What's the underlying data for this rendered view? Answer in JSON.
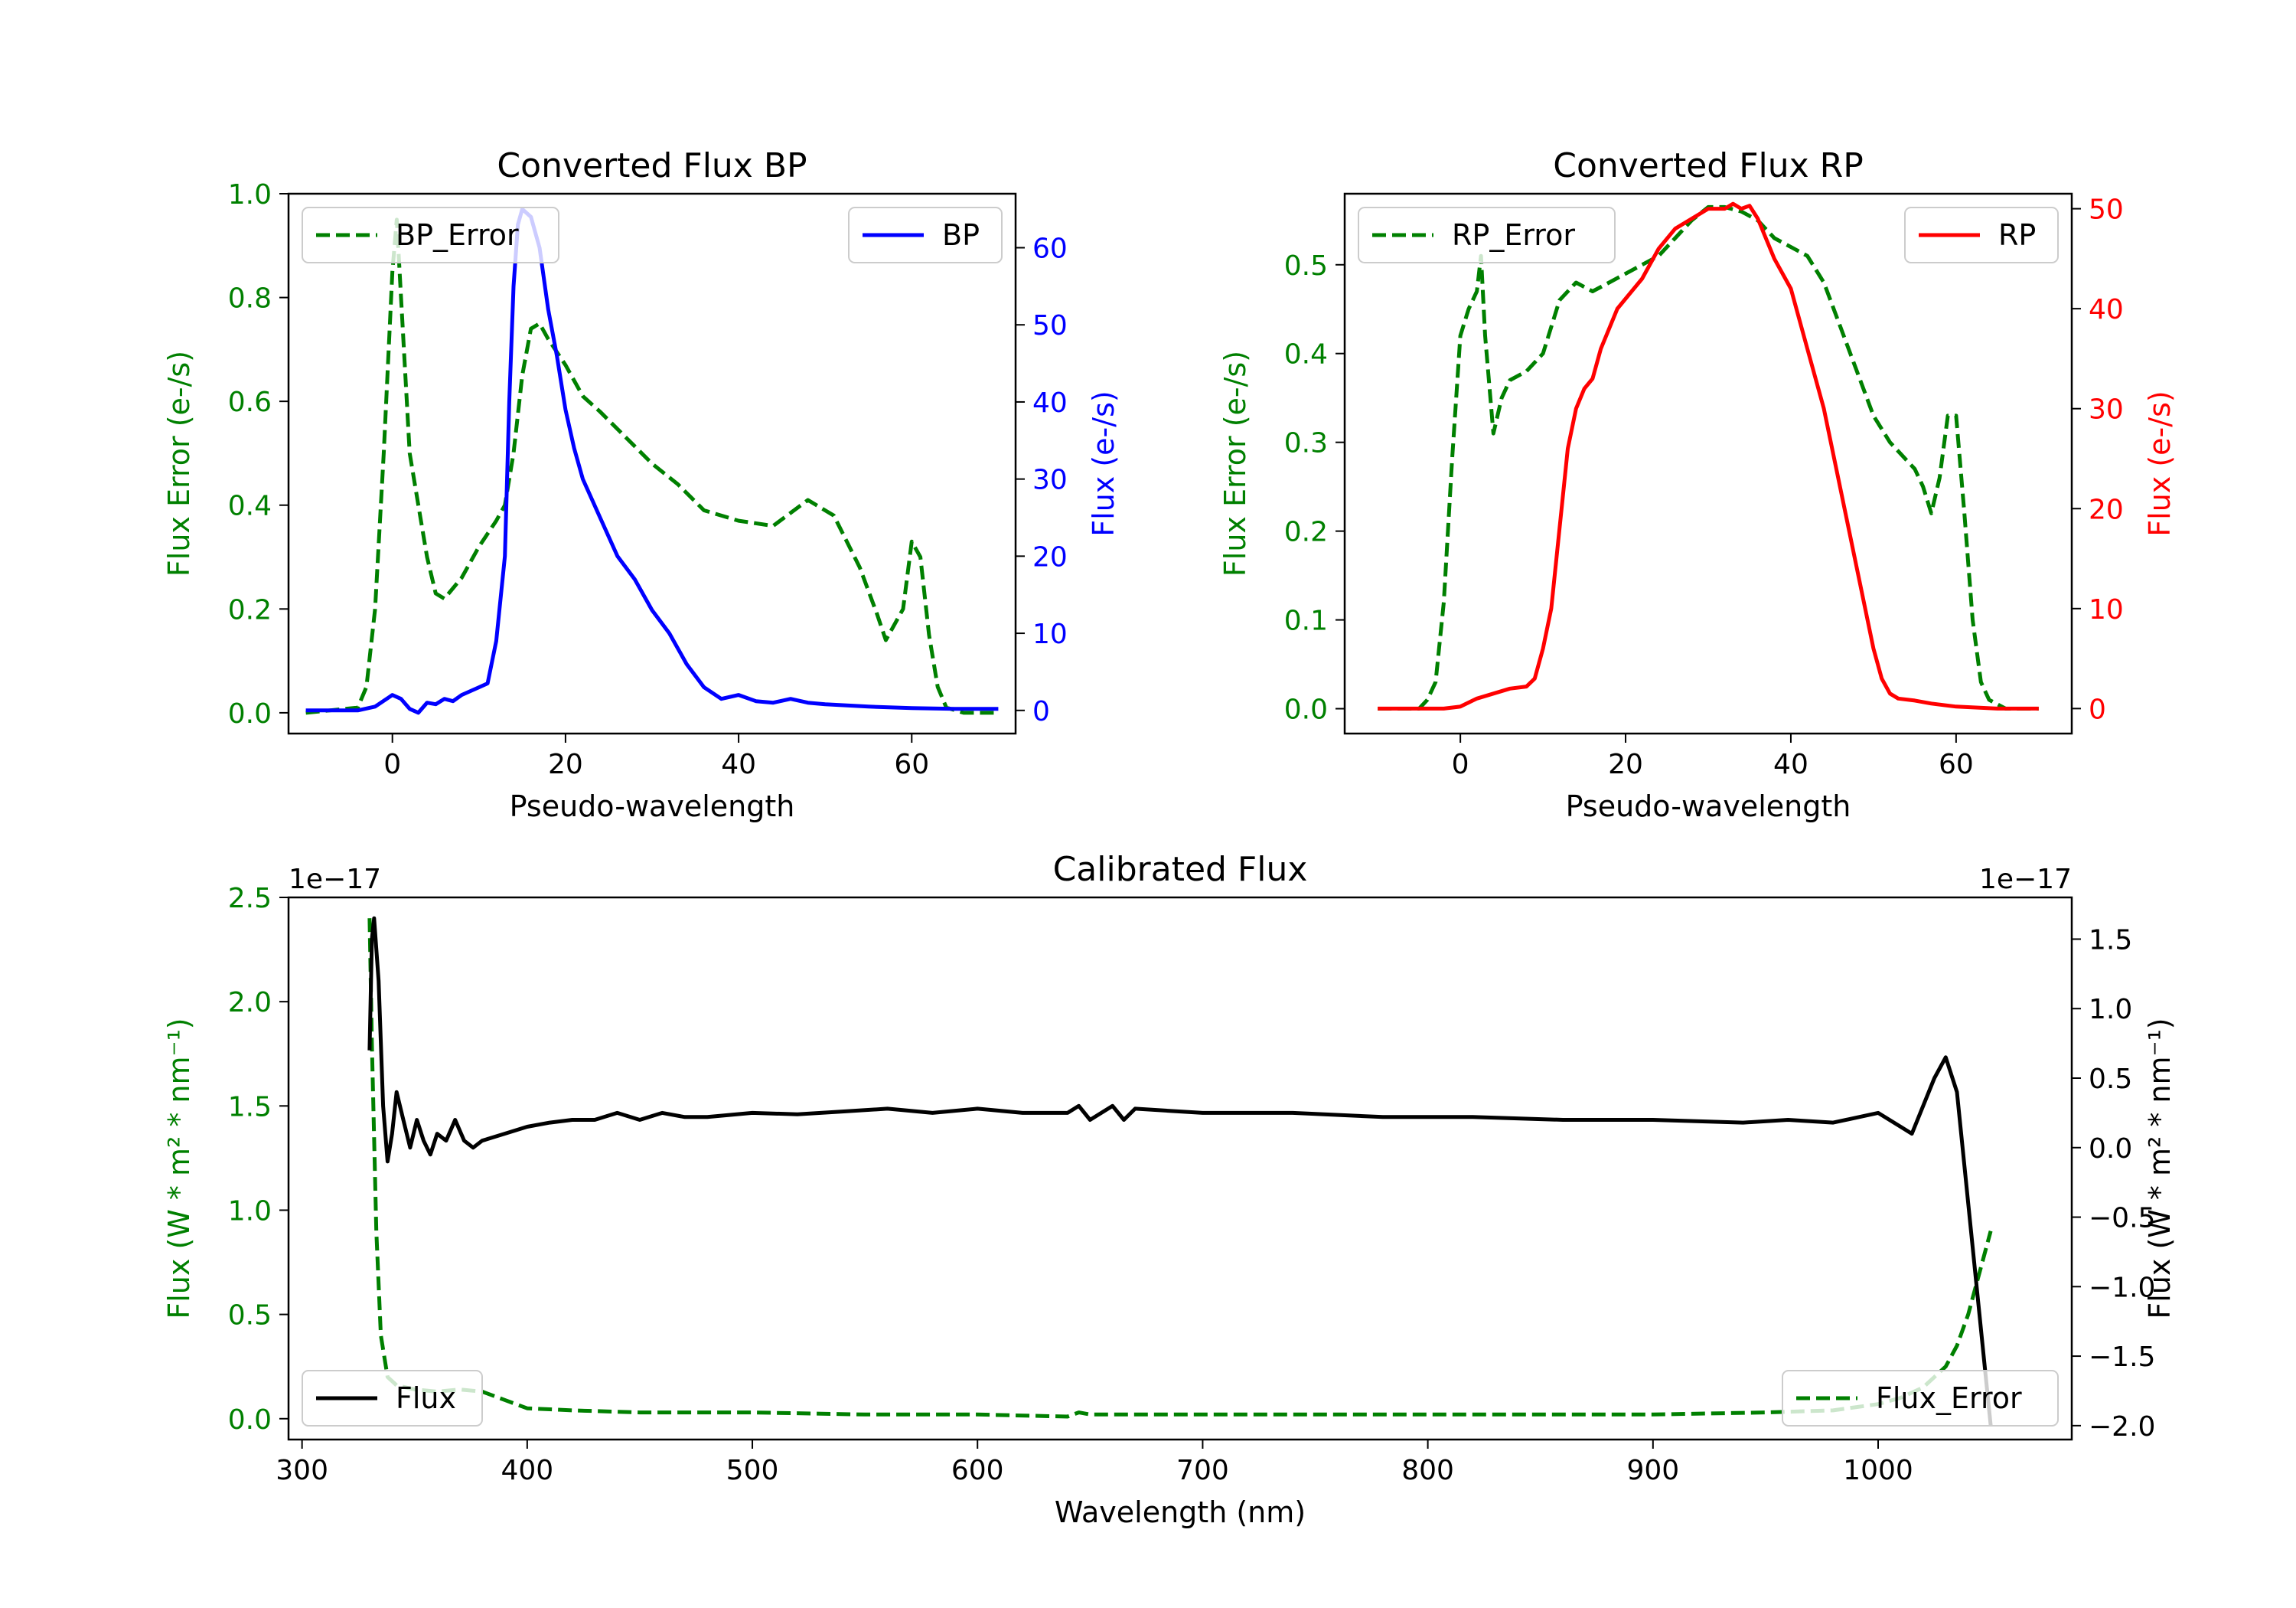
{
  "chart_data": [
    {
      "id": "bp",
      "type": "line",
      "title": "Converted Flux BP",
      "xlabel": "Pseudo-wavelength",
      "ylabel_left": "Flux Error (e-/s)",
      "ylabel_right": "Flux (e-/s)",
      "xlim": [
        -12,
        72
      ],
      "ylim_left": [
        -0.04,
        1.0
      ],
      "ylim_right": [
        -3,
        67
      ],
      "xticks": [
        0,
        20,
        40,
        60
      ],
      "xtick_labels": [
        "0",
        "20",
        "40",
        "60"
      ],
      "yticks_left": [
        0.0,
        0.2,
        0.4,
        0.6,
        0.8,
        1.0
      ],
      "ytick_labels_left": [
        "0.0",
        "0.2",
        "0.4",
        "0.6",
        "0.8",
        "1.0"
      ],
      "yticks_right": [
        0,
        10,
        20,
        30,
        40,
        50,
        60
      ],
      "ytick_labels_right": [
        "0",
        "10",
        "20",
        "30",
        "40",
        "50",
        "60"
      ],
      "colors": {
        "left_axis": "#008000",
        "right_axis": "#0000ff"
      },
      "legend_left": {
        "label": "BP_Error",
        "position": "upper left"
      },
      "legend_right": {
        "label": "BP",
        "position": "upper right"
      },
      "series": [
        {
          "name": "BP_Error",
          "axis": "left",
          "color": "#008000",
          "style": "dashed",
          "x": [
            -10,
            -4,
            -3,
            -2,
            -1,
            0,
            0.5,
            1,
            2,
            3,
            4,
            5,
            6,
            8,
            10,
            12,
            13,
            14,
            15,
            16,
            17,
            18,
            20,
            22,
            24,
            27,
            30,
            33,
            36,
            40,
            44,
            48,
            51,
            54,
            56,
            57,
            59,
            60,
            61,
            62,
            63,
            64,
            66,
            70
          ],
          "y": [
            0.0,
            0.01,
            0.05,
            0.2,
            0.5,
            0.85,
            0.95,
            0.8,
            0.5,
            0.4,
            0.3,
            0.23,
            0.22,
            0.26,
            0.32,
            0.37,
            0.4,
            0.5,
            0.65,
            0.74,
            0.75,
            0.72,
            0.67,
            0.61,
            0.58,
            0.53,
            0.48,
            0.44,
            0.39,
            0.37,
            0.36,
            0.41,
            0.38,
            0.28,
            0.19,
            0.14,
            0.2,
            0.33,
            0.3,
            0.15,
            0.05,
            0.01,
            0.0,
            0.0
          ]
        },
        {
          "name": "BP",
          "axis": "right",
          "color": "#0000ff",
          "style": "solid",
          "x": [
            -10,
            -4,
            -2,
            0,
            1,
            2,
            3,
            4,
            5,
            6,
            7,
            8,
            9,
            10,
            11,
            12,
            13,
            13.5,
            14,
            14.5,
            15,
            16,
            17,
            18,
            19,
            20,
            21,
            22,
            24,
            26,
            28,
            30,
            32,
            34,
            36,
            38,
            40,
            42,
            44,
            46,
            48,
            50,
            55,
            60,
            65,
            70
          ],
          "y": [
            0,
            0,
            0.5,
            2,
            1.5,
            0.2,
            -0.3,
            1,
            0.8,
            1.5,
            1.2,
            2,
            2.5,
            3,
            3.5,
            9,
            20,
            40,
            55,
            63,
            65,
            64,
            60,
            52,
            46,
            39,
            34,
            30,
            25,
            20,
            17,
            13,
            10,
            6,
            3,
            1.5,
            2,
            1.2,
            1.0,
            1.5,
            1.0,
            0.8,
            0.5,
            0.3,
            0.2,
            0.2
          ]
        }
      ]
    },
    {
      "id": "rp",
      "type": "line",
      "title": "Converted Flux RP",
      "xlabel": "Pseudo-wavelength",
      "ylabel_left": "Flux Error (e-/s)",
      "ylabel_right": "Flux (e-/s)",
      "xlim": [
        -14,
        74
      ],
      "ylim_left": [
        -0.028,
        0.58
      ],
      "ylim_right": [
        -2.5,
        51.5
      ],
      "xticks": [
        0,
        20,
        40,
        60
      ],
      "xtick_labels": [
        "0",
        "20",
        "40",
        "60"
      ],
      "yticks_left": [
        0.0,
        0.1,
        0.2,
        0.3,
        0.4,
        0.5
      ],
      "ytick_labels_left": [
        "0.0",
        "0.1",
        "0.2",
        "0.3",
        "0.4",
        "0.5"
      ],
      "yticks_right": [
        0,
        10,
        20,
        30,
        40,
        50
      ],
      "ytick_labels_right": [
        "0",
        "10",
        "20",
        "30",
        "40",
        "50"
      ],
      "colors": {
        "left_axis": "#008000",
        "right_axis": "#ff0000"
      },
      "legend_left": {
        "label": "RP_Error",
        "position": "upper left"
      },
      "legend_right": {
        "label": "RP",
        "position": "upper right"
      },
      "series": [
        {
          "name": "RP_Error",
          "axis": "left",
          "color": "#008000",
          "style": "dashed",
          "x": [
            -10,
            -5,
            -4,
            -3,
            -2,
            -1,
            0,
            1,
            2,
            2.5,
            3,
            4,
            5,
            6,
            8,
            10,
            12,
            14,
            16,
            18,
            20,
            22,
            24,
            26,
            28,
            30,
            32,
            34,
            36,
            38,
            40,
            42,
            44,
            46,
            48,
            50,
            52,
            54,
            55,
            56,
            57,
            58,
            59,
            60,
            61,
            62,
            63,
            64,
            66,
            70
          ],
          "y": [
            0.0,
            0.0,
            0.01,
            0.03,
            0.12,
            0.28,
            0.42,
            0.45,
            0.47,
            0.51,
            0.42,
            0.31,
            0.35,
            0.37,
            0.38,
            0.4,
            0.46,
            0.48,
            0.47,
            0.48,
            0.49,
            0.5,
            0.51,
            0.53,
            0.55,
            0.565,
            0.565,
            0.56,
            0.55,
            0.53,
            0.52,
            0.51,
            0.48,
            0.43,
            0.38,
            0.33,
            0.3,
            0.28,
            0.27,
            0.25,
            0.22,
            0.26,
            0.33,
            0.33,
            0.22,
            0.1,
            0.03,
            0.01,
            0.0,
            0.0
          ]
        },
        {
          "name": "RP",
          "axis": "right",
          "color": "#ff0000",
          "style": "solid",
          "x": [
            -10,
            -5,
            -2,
            0,
            2,
            4,
            6,
            8,
            9,
            10,
            11,
            12,
            13,
            14,
            15,
            16,
            17,
            18,
            19,
            20,
            22,
            24,
            26,
            28,
            30,
            32,
            33,
            34,
            35,
            36,
            37,
            38,
            40,
            42,
            44,
            46,
            48,
            50,
            51,
            52,
            53,
            55,
            57,
            60,
            65,
            70
          ],
          "y": [
            0,
            0,
            0,
            0.2,
            1,
            1.5,
            2,
            2.2,
            3,
            6,
            10,
            18,
            26,
            30,
            32,
            33,
            36,
            38,
            40,
            41,
            43,
            46,
            48,
            49,
            50,
            50,
            50.5,
            50,
            50.3,
            49,
            47,
            45,
            42,
            36,
            30,
            22,
            14,
            6,
            3,
            1.5,
            1.0,
            0.8,
            0.5,
            0.2,
            0,
            0
          ]
        }
      ]
    },
    {
      "id": "calibrated",
      "type": "line",
      "title": "Calibrated Flux",
      "xlabel": "Wavelength (nm)",
      "ylabel_left": "Flux (W * m² * nm⁻¹)",
      "ylabel_right": "Flux (W * m² * nm⁻¹)",
      "offset_left": "1e−17",
      "offset_right": "1e−17",
      "xlim": [
        294,
        1086
      ],
      "ylim_left": [
        -0.1,
        2.5
      ],
      "ylim_right": [
        -2.1,
        1.8
      ],
      "xticks": [
        300,
        400,
        500,
        600,
        700,
        800,
        900,
        1000
      ],
      "xtick_labels": [
        "300",
        "400",
        "500",
        "600",
        "700",
        "800",
        "900",
        "1000"
      ],
      "yticks_left": [
        0.0,
        0.5,
        1.0,
        1.5,
        2.0,
        2.5
      ],
      "ytick_labels_left": [
        "0.0",
        "0.5",
        "1.0",
        "1.5",
        "2.0",
        "2.5"
      ],
      "yticks_right": [
        -2.0,
        -1.5,
        -1.0,
        -0.5,
        0.0,
        0.5,
        1.0,
        1.5
      ],
      "ytick_labels_right": [
        "−2.0",
        "−1.5",
        "−1.0",
        "−0.5",
        "0.0",
        "0.5",
        "1.0",
        "1.5"
      ],
      "colors": {
        "left_axis": "#008000",
        "right_axis": "#000000"
      },
      "legend_left": {
        "label": "Flux",
        "position": "lower left"
      },
      "legend_right": {
        "label": "Flux_Error",
        "position": "lower right"
      },
      "series": [
        {
          "name": "Flux_Error",
          "axis": "left",
          "color": "#008000",
          "style": "dashed",
          "x": [
            330,
            331,
            333,
            335,
            338,
            342,
            350,
            360,
            370,
            380,
            390,
            400,
            420,
            450,
            500,
            550,
            600,
            640,
            645,
            650,
            700,
            800,
            900,
            950,
            980,
            1000,
            1010,
            1020,
            1030,
            1035,
            1040,
            1045,
            1050
          ],
          "y": [
            2.4,
            1.8,
            0.9,
            0.4,
            0.2,
            0.16,
            0.14,
            0.13,
            0.14,
            0.13,
            0.09,
            0.05,
            0.04,
            0.03,
            0.03,
            0.02,
            0.02,
            0.01,
            0.03,
            0.02,
            0.02,
            0.02,
            0.02,
            0.03,
            0.04,
            0.07,
            0.1,
            0.15,
            0.25,
            0.35,
            0.5,
            0.7,
            0.9
          ]
        },
        {
          "name": "Flux",
          "axis": "right",
          "color": "#000000",
          "style": "solid",
          "x": [
            330,
            331,
            332,
            334,
            336,
            338,
            340,
            342,
            345,
            348,
            351,
            354,
            357,
            360,
            364,
            368,
            372,
            376,
            380,
            390,
            400,
            410,
            420,
            430,
            440,
            450,
            460,
            470,
            480,
            500,
            520,
            540,
            560,
            580,
            600,
            620,
            640,
            645,
            650,
            660,
            665,
            670,
            700,
            740,
            780,
            820,
            860,
            900,
            940,
            960,
            980,
            1000,
            1010,
            1015,
            1020,
            1025,
            1030,
            1035,
            1040,
            1045,
            1050
          ],
          "y": [
            0.7,
            1.5,
            1.65,
            1.2,
            0.3,
            -0.1,
            0.1,
            0.4,
            0.2,
            0.0,
            0.2,
            0.05,
            -0.05,
            0.1,
            0.05,
            0.2,
            0.05,
            0.0,
            0.05,
            0.1,
            0.15,
            0.18,
            0.2,
            0.2,
            0.25,
            0.2,
            0.25,
            0.22,
            0.22,
            0.25,
            0.24,
            0.26,
            0.28,
            0.25,
            0.28,
            0.25,
            0.25,
            0.3,
            0.2,
            0.3,
            0.2,
            0.28,
            0.25,
            0.25,
            0.22,
            0.22,
            0.2,
            0.2,
            0.18,
            0.2,
            0.18,
            0.25,
            0.15,
            0.1,
            0.3,
            0.5,
            0.65,
            0.4,
            -0.4,
            -1.2,
            -2.0
          ]
        }
      ]
    }
  ]
}
